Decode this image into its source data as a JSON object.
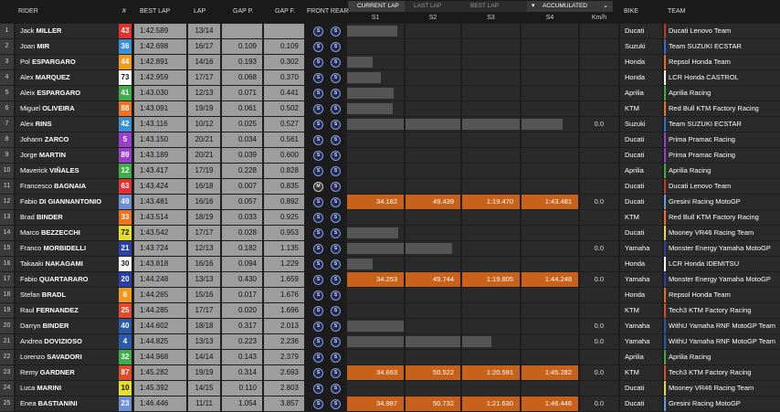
{
  "headers": {
    "rider": "RIDER",
    "num": "#",
    "best_lap": "BEST LAP",
    "lap": "LAP",
    "gap_p": "GAP P.",
    "gap_f": "GAP F.",
    "tyres": "FRONT REAR",
    "s1": "S1",
    "s2": "S2",
    "s3": "S3",
    "s4": "S4",
    "kmh": "Km/h",
    "bike": "BIKE",
    "team": "TEAM"
  },
  "tabs": [
    "CURRENT LAP",
    "LAST LAP",
    "BEST LAP"
  ],
  "view_select": "ACCUMULATED",
  "rows": [
    {
      "pos": "1",
      "first": "Jack",
      "last": "MILLER",
      "num": "43",
      "num_bg": "#e0332e",
      "num_fg": "#ffffff",
      "best": "1:42.589",
      "lap": "13/14",
      "gap_p": "",
      "gap_f": "",
      "front": "S",
      "rear": "S",
      "s": [
        0.88,
        0,
        0,
        0
      ],
      "times": [
        "",
        "",
        "",
        ""
      ],
      "kmh": "",
      "bike": "Ducati",
      "team": "Ducati Lenovo Team",
      "team_color": "#c0392b"
    },
    {
      "pos": "2",
      "first": "Joan",
      "last": "MIR",
      "num": "36",
      "num_bg": "#3a8fd6",
      "num_fg": "#ffffff",
      "best": "1:42.698",
      "lap": "16/17",
      "gap_p": "0.109",
      "gap_f": "0.109",
      "front": "S",
      "rear": "S",
      "s": [
        0,
        0,
        0,
        0
      ],
      "times": [
        "",
        "",
        "",
        ""
      ],
      "kmh": "",
      "bike": "Suzuki",
      "team": "Team SUZUKI ECSTAR",
      "team_color": "#2f6fd6"
    },
    {
      "pos": "3",
      "first": "Pol",
      "last": "ESPARGARO",
      "num": "44",
      "num_bg": "#f39a1e",
      "num_fg": "#ffffff",
      "best": "1:42.891",
      "lap": "14/16",
      "gap_p": "0.193",
      "gap_f": "0.302",
      "front": "S",
      "rear": "S",
      "s": [
        0.45,
        0,
        0,
        0
      ],
      "times": [
        "",
        "",
        "",
        ""
      ],
      "kmh": "",
      "bike": "Honda",
      "team": "Repsol Honda Team",
      "team_color": "#e8701a"
    },
    {
      "pos": "4",
      "first": "Alex",
      "last": "MARQUEZ",
      "num": "73",
      "num_bg": "#ffffff",
      "num_fg": "#111111",
      "best": "1:42.959",
      "lap": "17/17",
      "gap_p": "0.068",
      "gap_f": "0.370",
      "front": "S",
      "rear": "S",
      "s": [
        0.6,
        0,
        0,
        0
      ],
      "times": [
        "",
        "",
        "",
        ""
      ],
      "kmh": "",
      "bike": "Honda",
      "team": "LCR Honda CASTROL",
      "team_color": "#ffffff"
    },
    {
      "pos": "5",
      "first": "Aleix",
      "last": "ESPARGARO",
      "num": "41",
      "num_bg": "#3fae49",
      "num_fg": "#ffffff",
      "best": "1:43.030",
      "lag": "",
      "lap": "12/13",
      "gap_p": "0.071",
      "gap_f": "0.441",
      "front": "S",
      "rear": "S",
      "s": [
        0.82,
        0,
        0,
        0
      ],
      "times": [
        "",
        "",
        "",
        ""
      ],
      "kmh": "",
      "bike": "Aprilia",
      "team": "Aprilia Racing",
      "team_color": "#3fae49"
    },
    {
      "pos": "6",
      "first": "Miguel",
      "last": "OLIVEIRA",
      "num": "88",
      "num_bg": "#f2711c",
      "num_fg": "#ffffff",
      "best": "1:43.091",
      "lap": "19/19",
      "gap_p": "0.061",
      "gap_f": "0.502",
      "front": "S",
      "rear": "S",
      "s": [
        0.8,
        0,
        0,
        0
      ],
      "times": [
        "",
        "",
        "",
        ""
      ],
      "kmh": "",
      "bike": "KTM",
      "team": "Red Bull KTM Factory Racing",
      "team_color": "#f2711c"
    },
    {
      "pos": "7",
      "first": "Alex",
      "last": "RINS",
      "num": "42",
      "num_bg": "#3a8fd6",
      "num_fg": "#ffffff",
      "best": "1:43.116",
      "lap": "10/12",
      "gap_p": "0.025",
      "gap_f": "0.527",
      "front": "S",
      "rear": "S",
      "s": [
        1,
        1,
        1,
        0.72
      ],
      "times": [
        "",
        "",
        "",
        ""
      ],
      "kmh": "0.0",
      "bike": "Suzuki",
      "team": "Team SUZUKI ECSTAR",
      "team_color": "#2f6fd6"
    },
    {
      "pos": "8",
      "first": "Johann",
      "last": "ZARCO",
      "num": "5",
      "num_bg": "#9b3fcf",
      "num_fg": "#ffffff",
      "best": "1:43.150",
      "lap": "20/21",
      "gap_p": "0.034",
      "gap_f": "0.561",
      "front": "S",
      "rear": "S",
      "s": [
        0,
        0,
        0,
        0
      ],
      "times": [
        "",
        "",
        "",
        ""
      ],
      "kmh": "",
      "bike": "Ducati",
      "team": "Prima Pramac Racing",
      "team_color": "#9b3fcf"
    },
    {
      "pos": "9",
      "first": "Jorge",
      "last": "MARTIN",
      "num": "89",
      "num_bg": "#9b3fcf",
      "num_fg": "#ffffff",
      "best": "1:43.189",
      "lap": "20/21",
      "gap_p": "0.039",
      "gap_f": "0.600",
      "front": "S",
      "rear": "S",
      "s": [
        0,
        0,
        0,
        0
      ],
      "times": [
        "",
        "",
        "",
        ""
      ],
      "kmh": "",
      "bike": "Ducati",
      "team": "Prima Pramac Racing",
      "team_color": "#9b3fcf"
    },
    {
      "pos": "10",
      "first": "Maverick",
      "last": "VIÑALES",
      "num": "12",
      "num_bg": "#3fae49",
      "num_fg": "#ffffff",
      "best": "1:43.417",
      "lap": "17/19",
      "gap_p": "0.228",
      "gap_f": "0.828",
      "front": "S",
      "rear": "S",
      "s": [
        0,
        0,
        0,
        0
      ],
      "times": [
        "",
        "",
        "",
        ""
      ],
      "kmh": "",
      "bike": "Aprilia",
      "team": "Aprilia Racing",
      "team_color": "#3fae49"
    },
    {
      "pos": "11",
      "first": "Francesco",
      "last": "BAGNAIA",
      "num": "63",
      "num_bg": "#e0332e",
      "num_fg": "#ffffff",
      "best": "1:43.424",
      "lap": "16/18",
      "gap_p": "0.007",
      "gap_f": "0.835",
      "front": "M",
      "rear": "S",
      "s": [
        0,
        0,
        0,
        0
      ],
      "times": [
        "",
        "",
        "",
        ""
      ],
      "kmh": "",
      "bike": "Ducati",
      "team": "Ducati Lenovo Team",
      "team_color": "#c0392b"
    },
    {
      "pos": "12",
      "first": "Fabio",
      "last": "DI GIANNANTONIO",
      "num": "49",
      "num_bg": "#6c8fd6",
      "num_fg": "#ffffff",
      "best": "1:43.481",
      "lap": "16/16",
      "gap_p": "0.057",
      "gap_f": "0.892",
      "front": "S",
      "rear": "S",
      "s": [
        1,
        1,
        1,
        1
      ],
      "times": [
        "34.182",
        "49.439",
        "1:19.470",
        "1:43.481"
      ],
      "orange": true,
      "kmh": "0.0",
      "bike": "Ducati",
      "team": "Gresini Racing MotoGP",
      "team_color": "#5fa0e0"
    },
    {
      "pos": "13",
      "first": "Brad",
      "last": "BINDER",
      "num": "33",
      "num_bg": "#f2711c",
      "num_fg": "#ffffff",
      "best": "1:43.514",
      "lap": "18/19",
      "gap_p": "0.033",
      "gap_f": "0.925",
      "front": "S",
      "rear": "S",
      "s": [
        0,
        0,
        0,
        0
      ],
      "times": [
        "",
        "",
        "",
        ""
      ],
      "kmh": "",
      "bike": "KTM",
      "team": "Red Bull KTM Factory Racing",
      "team_color": "#f2711c"
    },
    {
      "pos": "14",
      "first": "Marco",
      "last": "BEZZECCHI",
      "num": "72",
      "num_bg": "#e6e02a",
      "num_fg": "#111111",
      "best": "1:43.542",
      "lap": "17/17",
      "gap_p": "0.028",
      "gap_f": "0.953",
      "front": "S",
      "rear": "S",
      "s": [
        0.9,
        0,
        0,
        0
      ],
      "times": [
        "",
        "",
        "",
        ""
      ],
      "kmh": "",
      "bike": "Ducati",
      "team": "Mooney VR46 Racing Team",
      "team_color": "#e6e02a"
    },
    {
      "pos": "15",
      "first": "Franco",
      "last": "MORBIDELLI",
      "num": "21",
      "num_bg": "#2b3fa8",
      "num_fg": "#ffffff",
      "best": "1:43.724",
      "lap": "12/13",
      "gap_p": "0.182",
      "gap_f": "1.135",
      "front": "S",
      "rear": "S",
      "s": [
        1,
        0.85,
        0,
        0
      ],
      "times": [
        "",
        "",
        "",
        ""
      ],
      "kmh": "0.0",
      "bike": "Yamaha",
      "team": "Monster Energy Yamaha MotoGP",
      "team_color": "#2b3fa8"
    },
    {
      "pos": "16",
      "first": "Takaaki",
      "last": "NAKAGAMI",
      "num": "30",
      "num_bg": "#ffffff",
      "num_fg": "#111111",
      "best": "1:43.818",
      "lap": "16/16",
      "gap_p": "0.094",
      "gap_f": "1.229",
      "front": "S",
      "rear": "S",
      "s": [
        0.45,
        0,
        0,
        0
      ],
      "times": [
        "",
        "",
        "",
        ""
      ],
      "kmh": "",
      "bike": "Honda",
      "team": "LCR Honda IDEMITSU",
      "team_color": "#ffffff"
    },
    {
      "pos": "17",
      "first": "Fabio",
      "last": "QUARTARARO",
      "num": "20",
      "num_bg": "#2b3fa8",
      "num_fg": "#ffffff",
      "best": "1:44.248",
      "lap": "13/13",
      "gap_p": "0.430",
      "gap_f": "1.659",
      "front": "S",
      "rear": "S",
      "s": [
        1,
        1,
        1,
        1
      ],
      "times": [
        "34.253",
        "49.744",
        "1:19.805",
        "1:44.248"
      ],
      "orange": true,
      "kmh": "0.0",
      "bike": "Yamaha",
      "team": "Monster Energy Yamaha MotoGP",
      "team_color": "#2b3fa8"
    },
    {
      "pos": "18",
      "first": "Stefan",
      "last": "BRADL",
      "num": "6",
      "num_bg": "#f39a1e",
      "num_fg": "#ffffff",
      "best": "1:44.265",
      "lap": "15/16",
      "gap_p": "0.017",
      "gap_f": "1.676",
      "front": "S",
      "rear": "S",
      "s": [
        0,
        0,
        0,
        0
      ],
      "times": [
        "",
        "",
        "",
        ""
      ],
      "kmh": "",
      "bike": "Honda",
      "team": "Repsol Honda Team",
      "team_color": "#e8701a"
    },
    {
      "pos": "19",
      "first": "Raul",
      "last": "FERNANDEZ",
      "num": "25",
      "num_bg": "#e04b2a",
      "num_fg": "#ffffff",
      "best": "1:44.285",
      "lap": "17/17",
      "gap_p": "0.020",
      "gap_f": "1.696",
      "front": "S",
      "rear": "S",
      "s": [
        0,
        0,
        0,
        0
      ],
      "times": [
        "",
        "",
        "",
        ""
      ],
      "kmh": "",
      "bike": "KTM",
      "team": "Tech3 KTM Factory Racing",
      "team_color": "#e04b2a"
    },
    {
      "pos": "20",
      "first": "Darryn",
      "last": "BINDER",
      "num": "40",
      "num_bg": "#2b5aa8",
      "num_fg": "#ffffff",
      "best": "1:44.602",
      "lap": "18/18",
      "gap_p": "0.317",
      "gap_f": "2.013",
      "front": "S",
      "rear": "S",
      "s": [
        1,
        0,
        0,
        0
      ],
      "times": [
        "",
        "",
        "",
        ""
      ],
      "kmh": "0.0",
      "bike": "Yamaha",
      "team": "WithU Yamaha RNF MotoGP Team",
      "team_color": "#2b5aa8"
    },
    {
      "pos": "21",
      "first": "Andrea",
      "last": "DOVIZIOSO",
      "num": "4",
      "num_bg": "#2b5aa8",
      "num_fg": "#ffffff",
      "best": "1:44.825",
      "lap": "13/13",
      "gap_p": "0.223",
      "gap_f": "2.236",
      "front": "S",
      "rear": "S",
      "s": [
        1,
        1,
        0.5,
        0
      ],
      "times": [
        "",
        "",
        "",
        ""
      ],
      "kmh": "0.0",
      "bike": "Yamaha",
      "team": "WithU Yamaha RNF MotoGP Team",
      "team_color": "#2b5aa8"
    },
    {
      "pos": "22",
      "first": "Lorenzo",
      "last": "SAVADORI",
      "num": "32",
      "num_bg": "#3fae49",
      "num_fg": "#ffffff",
      "best": "1:44.968",
      "lap": "14/14",
      "gap_p": "0.143",
      "gap_f": "2.379",
      "front": "S",
      "rear": "S",
      "s": [
        0,
        0,
        0,
        0
      ],
      "times": [
        "",
        "",
        "",
        ""
      ],
      "kmh": "",
      "bike": "Aprilia",
      "team": "Aprilia Racing",
      "team_color": "#3fae49"
    },
    {
      "pos": "23",
      "first": "Remy",
      "last": "GARDNER",
      "num": "87",
      "num_bg": "#e04b2a",
      "num_fg": "#ffffff",
      "best": "1:45.282",
      "lap": "19/19",
      "gap_p": "0.314",
      "gap_f": "2.693",
      "front": "S",
      "rear": "S",
      "s": [
        1,
        1,
        1,
        1
      ],
      "times": [
        "34.663",
        "50.522",
        "1:20.591",
        "1:45.282"
      ],
      "orange": true,
      "kmh": "0.0",
      "bike": "KTM",
      "team": "Tech3 KTM Factory Racing",
      "team_color": "#e04b2a"
    },
    {
      "pos": "24",
      "first": "Luca",
      "last": "MARINI",
      "num": "10",
      "num_bg": "#e6e02a",
      "num_fg": "#111111",
      "best": "1:45.392",
      "lap": "14/15",
      "gap_p": "0.110",
      "gap_f": "2.803",
      "front": "S",
      "rear": "S",
      "s": [
        0,
        0,
        0,
        0
      ],
      "times": [
        "",
        "",
        "",
        ""
      ],
      "kmh": "",
      "bike": "Ducati",
      "team": "Mooney VR46 Racing Team",
      "team_color": "#e6e02a"
    },
    {
      "pos": "25",
      "first": "Enea",
      "last": "BASTIANINI",
      "num": "23",
      "num_bg": "#6c8fd6",
      "num_fg": "#ffffff",
      "best": "1:46.446",
      "lap": "11/11",
      "gap_p": "1.054",
      "gap_f": "3.857",
      "front": "S",
      "rear": "S",
      "s": [
        1,
        1,
        1,
        1
      ],
      "times": [
        "34.987",
        "50.732",
        "1:21.630",
        "1:46.446"
      ],
      "orange": true,
      "kmh": "0.0",
      "bike": "Ducati",
      "team": "Gresini Racing MotoGP",
      "team_color": "#5fa0e0"
    }
  ]
}
